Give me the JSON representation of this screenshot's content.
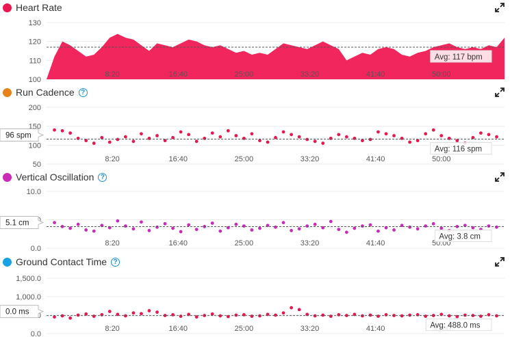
{
  "panels": [
    {
      "title": "Heart Rate",
      "dot_color": "#e8174e",
      "help": false,
      "expand_icon": "expand-icon",
      "avg_label": "Avg: 117 bpm",
      "callout": null
    },
    {
      "title": "Run Cadence",
      "dot_color": "#e8821a",
      "help": true,
      "expand_icon": "expand-icon",
      "avg_label": "Avg: 116 spm",
      "callout": "96 spm"
    },
    {
      "title": "Vertical Oscillation",
      "dot_color": "#c92bb8",
      "help": true,
      "expand_icon": "expand-icon",
      "avg_label": "Avg: 3.8 cm",
      "callout": "5.1 cm"
    },
    {
      "title": "Ground Contact Time",
      "dot_color": "#1aa1e6",
      "help": true,
      "expand_icon": "expand-icon",
      "avg_label": "Avg: 488.0 ms",
      "callout": "0.0 ms"
    }
  ],
  "help_glyph": "?",
  "chart_data": [
    {
      "type": "area",
      "x_ticks": [
        "8:20",
        "16:40",
        "25:00",
        "33:20",
        "41:40",
        "50:00"
      ],
      "x_range_min": [
        0,
        58
      ],
      "y_ticks": [
        "130",
        "120",
        "110",
        "100"
      ],
      "ylim": [
        100,
        130
      ],
      "avg": 117,
      "series": [
        {
          "color": "#f0265c",
          "x": [
            0,
            1,
            2,
            3,
            4,
            5,
            6,
            7,
            8,
            9,
            10,
            11,
            12,
            13,
            14,
            15,
            16,
            17,
            18,
            19,
            20,
            21,
            22,
            23,
            24,
            25,
            26,
            27,
            28,
            29,
            30,
            31,
            32,
            33,
            34,
            35,
            36,
            37,
            38,
            39,
            40,
            41,
            42,
            43,
            44,
            45,
            46,
            47,
            48,
            49,
            50,
            51,
            52,
            53,
            54,
            55,
            56,
            57,
            58
          ],
          "values": [
            100,
            112,
            120,
            118,
            115,
            112,
            113,
            117,
            122,
            124,
            122,
            121,
            118,
            115,
            119,
            118,
            117,
            119,
            121,
            120,
            118,
            117,
            118,
            116,
            114,
            115,
            113,
            114,
            113,
            116,
            119,
            118,
            117,
            116,
            118,
            120,
            118,
            116,
            110,
            112,
            114,
            113,
            116,
            117,
            116,
            113,
            112,
            114,
            115,
            117,
            118,
            119,
            117,
            116,
            117,
            116,
            118,
            117,
            122
          ]
        }
      ]
    },
    {
      "type": "scatter",
      "x_ticks": [
        "8:20",
        "16:40",
        "25:00",
        "33:20",
        "41:40",
        "50:00"
      ],
      "x_range_min": [
        0,
        58
      ],
      "y_ticks": [
        "200",
        "150",
        "100",
        "50"
      ],
      "ylim": [
        50,
        200
      ],
      "avg": 116,
      "series": [
        {
          "color": "#e8174e",
          "x": [
            1,
            2,
            3,
            4,
            5,
            6,
            7,
            8,
            9,
            10,
            11,
            12,
            13,
            14,
            15,
            16,
            17,
            18,
            19,
            20,
            21,
            22,
            23,
            24,
            25,
            26,
            27,
            28,
            29,
            30,
            31,
            32,
            33,
            34,
            35,
            36,
            37,
            38,
            39,
            40,
            41,
            42,
            43,
            44,
            45,
            46,
            47,
            48,
            49,
            50,
            51,
            52,
            53,
            54,
            55,
            56,
            57
          ],
          "values": [
            140,
            138,
            132,
            118,
            112,
            105,
            120,
            108,
            115,
            122,
            110,
            130,
            118,
            125,
            112,
            120,
            135,
            128,
            110,
            118,
            132,
            122,
            138,
            125,
            118,
            130,
            112,
            108,
            120,
            135,
            128,
            122,
            115,
            110,
            105,
            118,
            128,
            122,
            118,
            112,
            115,
            135,
            130,
            125,
            118,
            108,
            112,
            130,
            140,
            125,
            118,
            112,
            105,
            120,
            132,
            128,
            122
          ]
        }
      ]
    },
    {
      "type": "scatter",
      "x_ticks": [
        "8:20",
        "16:40",
        "25:00",
        "33:20",
        "41:40",
        "50:00"
      ],
      "x_range_min": [
        0,
        58
      ],
      "y_ticks": [
        "10.0",
        "5.0",
        "0.0"
      ],
      "ylim": [
        0,
        10
      ],
      "avg": 3.8,
      "series": [
        {
          "color": "#c92bb8",
          "x": [
            1,
            2,
            3,
            4,
            5,
            6,
            7,
            8,
            9,
            10,
            11,
            12,
            13,
            14,
            15,
            16,
            17,
            18,
            19,
            20,
            21,
            22,
            23,
            24,
            25,
            26,
            27,
            28,
            29,
            30,
            31,
            32,
            33,
            34,
            35,
            36,
            37,
            38,
            39,
            40,
            41,
            42,
            43,
            44,
            45,
            46,
            47,
            48,
            49,
            50,
            51,
            52,
            53,
            54,
            55,
            56,
            57
          ],
          "values": [
            4.5,
            3.8,
            3.5,
            4.2,
            3.2,
            3.0,
            4.0,
            3.6,
            4.8,
            3.9,
            3.4,
            4.6,
            3.1,
            3.7,
            4.3,
            3.5,
            2.9,
            4.1,
            3.3,
            3.8,
            4.4,
            3.0,
            3.6,
            4.2,
            3.9,
            3.2,
            3.5,
            4.0,
            3.7,
            4.5,
            3.1,
            3.4,
            3.9,
            4.2,
            3.6,
            4.7,
            3.3,
            2.8,
            3.5,
            3.9,
            4.1,
            3.0,
            3.6,
            3.2,
            4.0,
            3.7,
            3.4,
            3.9,
            4.3,
            3.5,
            3.1,
            3.8,
            4.0,
            3.6,
            3.3,
            3.9,
            3.7
          ]
        }
      ]
    },
    {
      "type": "scatter",
      "x_ticks": [
        "8:20",
        "16:40",
        "25:00",
        "33:20",
        "41:40",
        "50:00"
      ],
      "x_range_min": [
        0,
        58
      ],
      "y_ticks": [
        "1,500.0",
        "1,000.0",
        "500.0",
        "0.0"
      ],
      "ylim": [
        0,
        1500
      ],
      "avg": 488.0,
      "series": [
        {
          "color": "#e8174e",
          "x": [
            1,
            2,
            3,
            4,
            5,
            6,
            7,
            8,
            9,
            10,
            11,
            12,
            13,
            14,
            15,
            16,
            17,
            18,
            19,
            20,
            21,
            22,
            23,
            24,
            25,
            26,
            27,
            28,
            29,
            30,
            31,
            32,
            33,
            34,
            35,
            36,
            37,
            38,
            39,
            40,
            41,
            42,
            43,
            44,
            45,
            46,
            47,
            48,
            49,
            50,
            51,
            52,
            53,
            54,
            55,
            56,
            57
          ],
          "values": [
            450,
            480,
            420,
            500,
            530,
            470,
            510,
            600,
            520,
            480,
            560,
            540,
            620,
            580,
            490,
            510,
            470,
            520,
            450,
            490,
            530,
            480,
            460,
            500,
            510,
            470,
            480,
            520,
            500,
            560,
            700,
            650,
            520,
            480,
            500,
            470,
            510,
            490,
            520,
            480,
            500,
            470,
            510,
            490,
            480,
            500,
            510,
            470,
            490,
            520,
            480,
            460,
            500,
            490,
            470,
            510,
            480
          ]
        }
      ]
    }
  ]
}
